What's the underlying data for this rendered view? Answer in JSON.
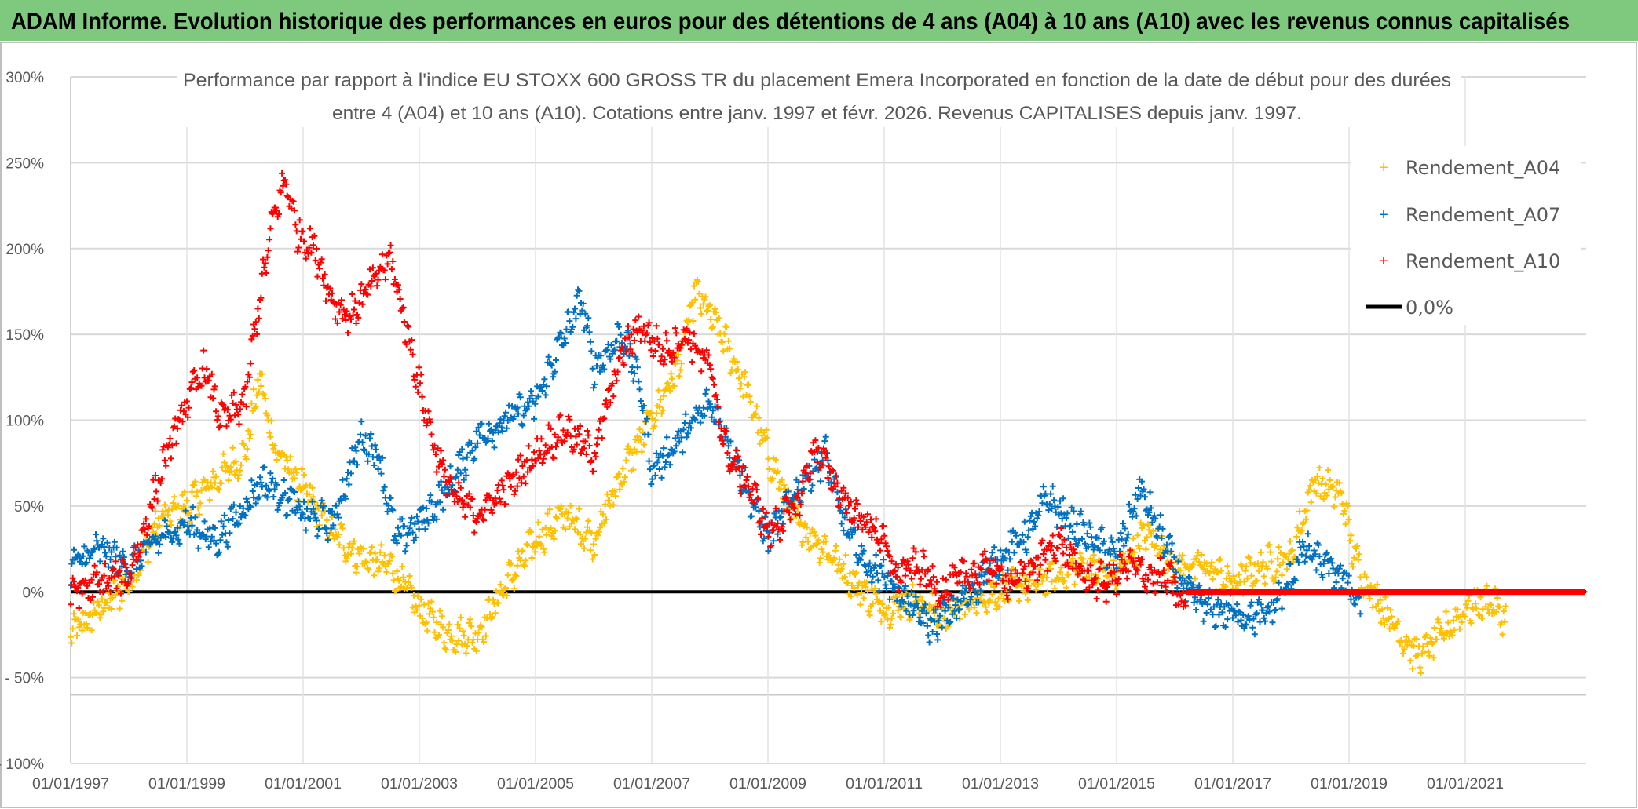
{
  "header": {
    "title": "ADAM Informe. Evolution historique des performances en euros pour des détentions de 4 ans (A04) à 10 ans (A10) avec les revenus connus capitalisés"
  },
  "colors": {
    "header_bg": "#7fc97f",
    "a04": "#ffc000",
    "a07": "#0070c0",
    "a10": "#ff0000",
    "zero": "#000000",
    "grid": "#d9d9d9"
  },
  "chart_data": {
    "type": "scatter",
    "title_lines": [
      "Performance par rapport à l'indice EU STOXX 600 GROSS TR  du placement Emera Incorporated en fonction de la date de début pour des durées",
      "entre 4 (A04) et 10 ans (A10). Cotations entre janv. 1997 et févr. 2026. Revenus CAPITALISES depuis janv. 1997."
    ],
    "xlabel": "",
    "ylabel": "",
    "xlim": [
      1997,
      2023.05
    ],
    "ylim": [
      -100,
      300
    ],
    "yticks": [
      300,
      250,
      200,
      150,
      100,
      50,
      0,
      -50,
      -100
    ],
    "ytick_labels": [
      "300%",
      "250%",
      "200%",
      "150%",
      "100%",
      "50%",
      "0%",
      "- 50%",
      "- 100%"
    ],
    "xticks": [
      1997,
      1999,
      2001,
      2003,
      2005,
      2007,
      2009,
      2011,
      2013,
      2015,
      2017,
      2019,
      2021
    ],
    "xtick_labels": [
      "01/01/1997",
      "01/01/1999",
      "01/01/2001",
      "01/01/2003",
      "01/01/2005",
      "01/01/2007",
      "01/01/2009",
      "01/01/2011",
      "01/01/2013",
      "01/01/2015",
      "01/01/2017",
      "01/01/2019",
      "01/01/2021"
    ],
    "grid": true,
    "extra_hline": -60,
    "legend_position": "top-right",
    "series": [
      {
        "name": "Rendement_A04",
        "marker": "plus",
        "points": [
          [
            1997,
            -25
          ],
          [
            1997.5,
            -10
          ],
          [
            1998,
            5
          ],
          [
            1998.5,
            40
          ],
          [
            1999,
            50
          ],
          [
            1999.5,
            65
          ],
          [
            2000,
            80
          ],
          [
            2000.25,
            125
          ],
          [
            2000.5,
            85
          ],
          [
            2001,
            60
          ],
          [
            2001.5,
            35
          ],
          [
            2002,
            20
          ],
          [
            2002.5,
            15
          ],
          [
            2003,
            -10
          ],
          [
            2003.5,
            -25
          ],
          [
            2004,
            -25
          ],
          [
            2004.5,
            5
          ],
          [
            2005,
            30
          ],
          [
            2005.5,
            45
          ],
          [
            2006,
            30
          ],
          [
            2006.5,
            70
          ],
          [
            2007,
            100
          ],
          [
            2007.5,
            135
          ],
          [
            2007.75,
            175
          ],
          [
            2008.2,
            150
          ],
          [
            2008.6,
            120
          ],
          [
            2009,
            80
          ],
          [
            2009.5,
            40
          ],
          [
            2010,
            25
          ],
          [
            2010.5,
            5
          ],
          [
            2011,
            -10
          ],
          [
            2011.5,
            -5
          ],
          [
            2012,
            -15
          ],
          [
            2012.5,
            -5
          ],
          [
            2013,
            0
          ],
          [
            2013.5,
            5
          ],
          [
            2014,
            10
          ],
          [
            2014.5,
            15
          ],
          [
            2015,
            10
          ],
          [
            2015.5,
            35
          ],
          [
            2016,
            15
          ],
          [
            2016.5,
            15
          ],
          [
            2017,
            5
          ],
          [
            2017.5,
            15
          ],
          [
            2018,
            20
          ],
          [
            2018.4,
            65
          ],
          [
            2018.9,
            55
          ],
          [
            2019.05,
            25
          ],
          [
            2019.3,
            5
          ],
          [
            2019.6,
            -10
          ],
          [
            2020,
            -30
          ],
          [
            2020.2,
            -38
          ],
          [
            2020.6,
            -25
          ],
          [
            2021,
            -10
          ],
          [
            2021.4,
            -5
          ],
          [
            2021.7,
            -17
          ]
        ]
      },
      {
        "name": "Rendement_A07",
        "marker": "plus",
        "points": [
          [
            1997,
            15
          ],
          [
            1997.5,
            25
          ],
          [
            1998,
            15
          ],
          [
            1998.5,
            30
          ],
          [
            1999,
            40
          ],
          [
            1999.5,
            30
          ],
          [
            2000,
            50
          ],
          [
            2000.3,
            65
          ],
          [
            2000.7,
            55
          ],
          [
            2001,
            45
          ],
          [
            2001.5,
            40
          ],
          [
            2002,
            90
          ],
          [
            2002.3,
            80
          ],
          [
            2002.6,
            30
          ],
          [
            2003,
            40
          ],
          [
            2003.5,
            60
          ],
          [
            2004,
            90
          ],
          [
            2004.5,
            100
          ],
          [
            2005,
            110
          ],
          [
            2005.5,
            150
          ],
          [
            2005.8,
            170
          ],
          [
            2006,
            130
          ],
          [
            2006.5,
            150
          ],
          [
            2006.8,
            120
          ],
          [
            2007,
            70
          ],
          [
            2007.5,
            90
          ],
          [
            2008,
            110
          ],
          [
            2008.3,
            90
          ],
          [
            2008.7,
            55
          ],
          [
            2009,
            30
          ],
          [
            2009.5,
            60
          ],
          [
            2010,
            80
          ],
          [
            2010.3,
            40
          ],
          [
            2010.7,
            15
          ],
          [
            2011,
            10
          ],
          [
            2011.5,
            -10
          ],
          [
            2011.8,
            -20
          ],
          [
            2012.2,
            -10
          ],
          [
            2012.5,
            0
          ],
          [
            2013,
            20
          ],
          [
            2013.5,
            35
          ],
          [
            2013.8,
            55
          ],
          [
            2014.2,
            40
          ],
          [
            2014.6,
            30
          ],
          [
            2015,
            20
          ],
          [
            2015.4,
            60
          ],
          [
            2015.8,
            30
          ],
          [
            2016.2,
            0
          ],
          [
            2016.6,
            -10
          ],
          [
            2017,
            -12
          ],
          [
            2017.5,
            -15
          ],
          [
            2017.9,
            0
          ],
          [
            2018.2,
            25
          ],
          [
            2018.6,
            15
          ],
          [
            2019,
            5
          ],
          [
            2019.2,
            -10
          ]
        ]
      },
      {
        "name": "Rendement_A10",
        "marker": "plus",
        "points": [
          [
            1997,
            0
          ],
          [
            1997.5,
            5
          ],
          [
            1998,
            10
          ],
          [
            1998.3,
            40
          ],
          [
            1998.6,
            75
          ],
          [
            1999,
            110
          ],
          [
            1999.3,
            130
          ],
          [
            1999.6,
            100
          ],
          [
            2000,
            110
          ],
          [
            2000.2,
            160
          ],
          [
            2000.5,
            220
          ],
          [
            2000.7,
            240
          ],
          [
            2000.9,
            210
          ],
          [
            2001.2,
            200
          ],
          [
            2001.5,
            170
          ],
          [
            2001.8,
            160
          ],
          [
            2002.2,
            180
          ],
          [
            2002.5,
            195
          ],
          [
            2002.8,
            150
          ],
          [
            2003,
            120
          ],
          [
            2003.3,
            80
          ],
          [
            2003.6,
            55
          ],
          [
            2004,
            45
          ],
          [
            2004.5,
            60
          ],
          [
            2005,
            80
          ],
          [
            2005.5,
            95
          ],
          [
            2006,
            80
          ],
          [
            2006.5,
            140
          ],
          [
            2006.8,
            155
          ],
          [
            2007.2,
            140
          ],
          [
            2007.6,
            150
          ],
          [
            2008,
            130
          ],
          [
            2008.3,
            80
          ],
          [
            2008.7,
            60
          ],
          [
            2009,
            35
          ],
          [
            2009.5,
            50
          ],
          [
            2009.8,
            85
          ],
          [
            2010.2,
            60
          ],
          [
            2010.5,
            45
          ],
          [
            2010.9,
            35
          ],
          [
            2011.2,
            10
          ],
          [
            2011.6,
            15
          ],
          [
            2012,
            0
          ],
          [
            2012.4,
            10
          ],
          [
            2012.8,
            15
          ],
          [
            2013.2,
            5
          ],
          [
            2013.6,
            15
          ],
          [
            2014,
            30
          ],
          [
            2014.4,
            10
          ],
          [
            2014.8,
            5
          ],
          [
            2015.2,
            15
          ],
          [
            2015.6,
            10
          ],
          [
            2016,
            5
          ],
          [
            2016.1,
            -10
          ],
          [
            2016.2,
            0
          ],
          [
            2023.05,
            0
          ]
        ]
      }
    ],
    "reference_line": {
      "name": "0,0%",
      "value": 0
    }
  }
}
